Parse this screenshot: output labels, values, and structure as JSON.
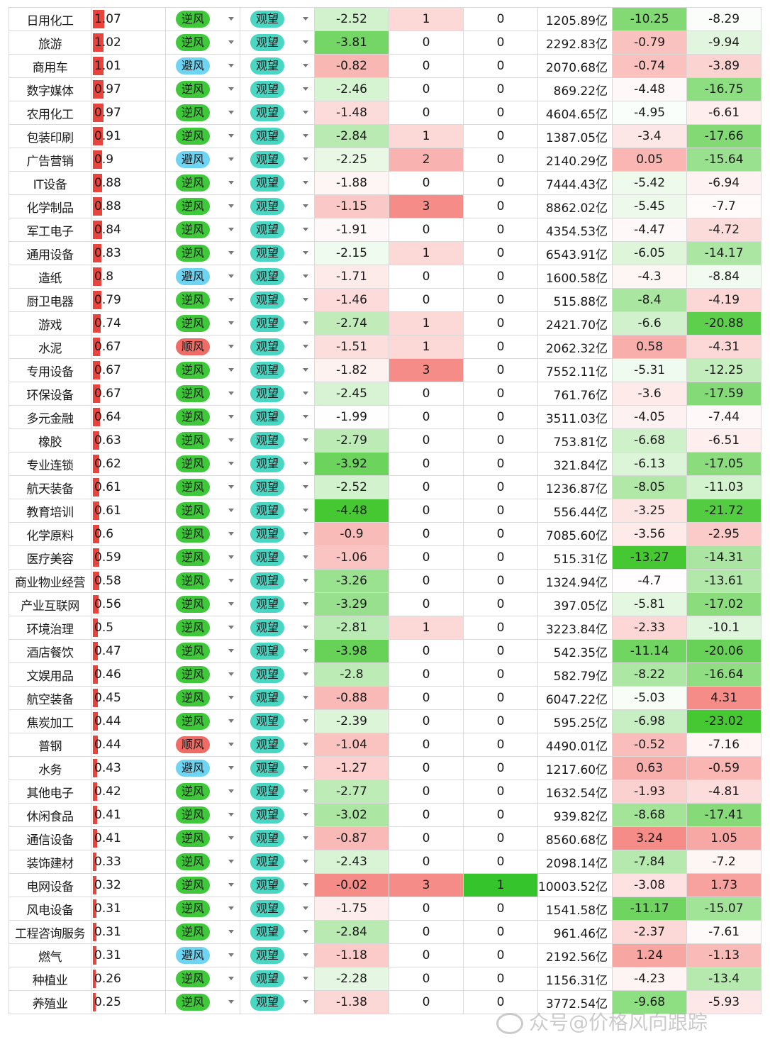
{
  "colors": {
    "bar": "#e8433d",
    "wind_ni": "#3fc93a",
    "wind_bi": "#6fd3f2",
    "wind_shun": "#ef6b66",
    "outlook": "#49d7c3"
  },
  "watermark": "众号@价格风向跟踪",
  "rows": [
    {
      "name": "日用化工",
      "score": "1.07",
      "wind": "逆风",
      "outlook": "观望",
      "chg": "-2.52",
      "c5": "1",
      "c6": "0",
      "cap": "1205.89亿",
      "r1": "-10.25",
      "r2": "-8.29"
    },
    {
      "name": "旅游",
      "score": "1.02",
      "wind": "逆风",
      "outlook": "观望",
      "chg": "-3.81",
      "c5": "0",
      "c6": "0",
      "cap": "2292.83亿",
      "r1": "-0.79",
      "r2": "-9.94"
    },
    {
      "name": "商用车",
      "score": "1.01",
      "wind": "避风",
      "outlook": "观望",
      "chg": "-0.82",
      "c5": "0",
      "c6": "0",
      "cap": "2070.68亿",
      "r1": "-0.74",
      "r2": "-3.89"
    },
    {
      "name": "数字媒体",
      "score": "0.97",
      "wind": "逆风",
      "outlook": "观望",
      "chg": "-2.46",
      "c5": "0",
      "c6": "0",
      "cap": "869.22亿",
      "r1": "-4.48",
      "r2": "-16.75"
    },
    {
      "name": "农用化工",
      "score": "0.97",
      "wind": "逆风",
      "outlook": "观望",
      "chg": "-1.48",
      "c5": "0",
      "c6": "0",
      "cap": "4604.65亿",
      "r1": "-4.95",
      "r2": "-6.61"
    },
    {
      "name": "包装印刷",
      "score": "0.91",
      "wind": "逆风",
      "outlook": "观望",
      "chg": "-2.84",
      "c5": "1",
      "c6": "0",
      "cap": "1387.05亿",
      "r1": "-3.4",
      "r2": "-17.66"
    },
    {
      "name": "广告营销",
      "score": "0.9",
      "wind": "避风",
      "outlook": "观望",
      "chg": "-2.25",
      "c5": "2",
      "c6": "0",
      "cap": "2140.29亿",
      "r1": "0.05",
      "r2": "-15.64"
    },
    {
      "name": "IT设备",
      "score": "0.88",
      "wind": "逆风",
      "outlook": "观望",
      "chg": "-1.88",
      "c5": "0",
      "c6": "0",
      "cap": "7444.43亿",
      "r1": "-5.42",
      "r2": "-6.94"
    },
    {
      "name": "化学制品",
      "score": "0.88",
      "wind": "逆风",
      "outlook": "观望",
      "chg": "-1.15",
      "c5": "3",
      "c6": "0",
      "cap": "8862.02亿",
      "r1": "-5.45",
      "r2": "-7.7"
    },
    {
      "name": "军工电子",
      "score": "0.84",
      "wind": "逆风",
      "outlook": "观望",
      "chg": "-1.91",
      "c5": "0",
      "c6": "0",
      "cap": "4354.53亿",
      "r1": "-4.47",
      "r2": "-4.72"
    },
    {
      "name": "通用设备",
      "score": "0.83",
      "wind": "逆风",
      "outlook": "观望",
      "chg": "-2.15",
      "c5": "1",
      "c6": "0",
      "cap": "6543.91亿",
      "r1": "-6.05",
      "r2": "-14.17"
    },
    {
      "name": "造纸",
      "score": "0.8",
      "wind": "避风",
      "outlook": "观望",
      "chg": "-1.71",
      "c5": "0",
      "c6": "0",
      "cap": "1600.58亿",
      "r1": "-4.3",
      "r2": "-8.84"
    },
    {
      "name": "厨卫电器",
      "score": "0.79",
      "wind": "逆风",
      "outlook": "观望",
      "chg": "-1.46",
      "c5": "0",
      "c6": "0",
      "cap": "515.88亿",
      "r1": "-8.4",
      "r2": "-4.19"
    },
    {
      "name": "游戏",
      "score": "0.74",
      "wind": "逆风",
      "outlook": "观望",
      "chg": "-2.74",
      "c5": "1",
      "c6": "0",
      "cap": "2421.70亿",
      "r1": "-6.6",
      "r2": "-20.88"
    },
    {
      "name": "水泥",
      "score": "0.67",
      "wind": "顺风",
      "outlook": "观望",
      "chg": "-1.51",
      "c5": "1",
      "c6": "0",
      "cap": "2062.32亿",
      "r1": "0.58",
      "r2": "-4.31"
    },
    {
      "name": "专用设备",
      "score": "0.67",
      "wind": "逆风",
      "outlook": "观望",
      "chg": "-1.82",
      "c5": "3",
      "c6": "0",
      "cap": "7552.11亿",
      "r1": "-5.31",
      "r2": "-12.25"
    },
    {
      "name": "环保设备",
      "score": "0.67",
      "wind": "逆风",
      "outlook": "观望",
      "chg": "-2.45",
      "c5": "0",
      "c6": "0",
      "cap": "761.76亿",
      "r1": "-3.6",
      "r2": "-17.59"
    },
    {
      "name": "多元金融",
      "score": "0.64",
      "wind": "逆风",
      "outlook": "观望",
      "chg": "-1.99",
      "c5": "0",
      "c6": "0",
      "cap": "3511.03亿",
      "r1": "-4.05",
      "r2": "-7.44"
    },
    {
      "name": "橡胶",
      "score": "0.63",
      "wind": "逆风",
      "outlook": "观望",
      "chg": "-2.79",
      "c5": "0",
      "c6": "0",
      "cap": "753.81亿",
      "r1": "-6.68",
      "r2": "-6.51"
    },
    {
      "name": "专业连锁",
      "score": "0.62",
      "wind": "逆风",
      "outlook": "观望",
      "chg": "-3.92",
      "c5": "0",
      "c6": "0",
      "cap": "321.84亿",
      "r1": "-6.13",
      "r2": "-17.05"
    },
    {
      "name": "航天装备",
      "score": "0.61",
      "wind": "逆风",
      "outlook": "观望",
      "chg": "-2.52",
      "c5": "0",
      "c6": "0",
      "cap": "1236.87亿",
      "r1": "-8.05",
      "r2": "-11.03"
    },
    {
      "name": "教育培训",
      "score": "0.61",
      "wind": "逆风",
      "outlook": "观望",
      "chg": "-4.48",
      "c5": "0",
      "c6": "0",
      "cap": "556.44亿",
      "r1": "-3.25",
      "r2": "-21.72"
    },
    {
      "name": "化学原料",
      "score": "0.6",
      "wind": "逆风",
      "outlook": "观望",
      "chg": "-0.9",
      "c5": "0",
      "c6": "0",
      "cap": "7085.60亿",
      "r1": "-3.56",
      "r2": "-2.95"
    },
    {
      "name": "医疗美容",
      "score": "0.59",
      "wind": "逆风",
      "outlook": "观望",
      "chg": "-1.06",
      "c5": "0",
      "c6": "0",
      "cap": "515.31亿",
      "r1": "-13.27",
      "r2": "-14.31"
    },
    {
      "name": "商业物业经营",
      "score": "0.58",
      "wind": "逆风",
      "outlook": "观望",
      "chg": "-3.26",
      "c5": "0",
      "c6": "0",
      "cap": "1324.94亿",
      "r1": "-4.7",
      "r2": "-13.61"
    },
    {
      "name": "产业互联网",
      "score": "0.56",
      "wind": "逆风",
      "outlook": "观望",
      "chg": "-3.29",
      "c5": "0",
      "c6": "0",
      "cap": "397.05亿",
      "r1": "-5.81",
      "r2": "-17.02"
    },
    {
      "name": "环境治理",
      "score": "0.5",
      "wind": "逆风",
      "outlook": "观望",
      "chg": "-2.81",
      "c5": "1",
      "c6": "0",
      "cap": "3223.84亿",
      "r1": "-2.33",
      "r2": "-10.1"
    },
    {
      "name": "酒店餐饮",
      "score": "0.47",
      "wind": "逆风",
      "outlook": "观望",
      "chg": "-3.98",
      "c5": "0",
      "c6": "0",
      "cap": "542.35亿",
      "r1": "-11.14",
      "r2": "-20.06"
    },
    {
      "name": "文娱用品",
      "score": "0.46",
      "wind": "逆风",
      "outlook": "观望",
      "chg": "-2.8",
      "c5": "0",
      "c6": "0",
      "cap": "582.79亿",
      "r1": "-8.22",
      "r2": "-16.64"
    },
    {
      "name": "航空装备",
      "score": "0.45",
      "wind": "逆风",
      "outlook": "观望",
      "chg": "-0.88",
      "c5": "0",
      "c6": "0",
      "cap": "6047.22亿",
      "r1": "-5.03",
      "r2": "4.31"
    },
    {
      "name": "焦炭加工",
      "score": "0.44",
      "wind": "逆风",
      "outlook": "观望",
      "chg": "-2.39",
      "c5": "0",
      "c6": "0",
      "cap": "595.25亿",
      "r1": "-6.98",
      "r2": "-23.02"
    },
    {
      "name": "普钢",
      "score": "0.44",
      "wind": "顺风",
      "outlook": "观望",
      "chg": "-1.04",
      "c5": "0",
      "c6": "0",
      "cap": "4490.01亿",
      "r1": "-0.52",
      "r2": "-7.16"
    },
    {
      "name": "水务",
      "score": "0.43",
      "wind": "避风",
      "outlook": "观望",
      "chg": "-1.27",
      "c5": "0",
      "c6": "0",
      "cap": "1217.60亿",
      "r1": "0.63",
      "r2": "-0.59"
    },
    {
      "name": "其他电子",
      "score": "0.42",
      "wind": "逆风",
      "outlook": "观望",
      "chg": "-2.77",
      "c5": "0",
      "c6": "0",
      "cap": "1632.54亿",
      "r1": "-1.93",
      "r2": "-4.81"
    },
    {
      "name": "休闲食品",
      "score": "0.41",
      "wind": "逆风",
      "outlook": "观望",
      "chg": "-3.02",
      "c5": "0",
      "c6": "0",
      "cap": "939.82亿",
      "r1": "-8.68",
      "r2": "-17.41"
    },
    {
      "name": "通信设备",
      "score": "0.41",
      "wind": "逆风",
      "outlook": "观望",
      "chg": "-0.87",
      "c5": "0",
      "c6": "0",
      "cap": "8560.68亿",
      "r1": "3.24",
      "r2": "1.05"
    },
    {
      "name": "装饰建材",
      "score": "0.33",
      "wind": "逆风",
      "outlook": "观望",
      "chg": "-2.43",
      "c5": "0",
      "c6": "0",
      "cap": "2098.14亿",
      "r1": "-7.84",
      "r2": "-7.2"
    },
    {
      "name": "电网设备",
      "score": "0.32",
      "wind": "逆风",
      "outlook": "观望",
      "chg": "-0.02",
      "c5": "3",
      "c6": "1",
      "cap": "10003.52亿",
      "r1": "-3.08",
      "r2": "1.73"
    },
    {
      "name": "风电设备",
      "score": "0.31",
      "wind": "逆风",
      "outlook": "观望",
      "chg": "-1.75",
      "c5": "0",
      "c6": "0",
      "cap": "1541.58亿",
      "r1": "-11.17",
      "r2": "-15.07"
    },
    {
      "name": "工程咨询服务",
      "score": "0.31",
      "wind": "逆风",
      "outlook": "观望",
      "chg": "-2.84",
      "c5": "0",
      "c6": "0",
      "cap": "961.46亿",
      "r1": "-2.37",
      "r2": "-7.61"
    },
    {
      "name": "燃气",
      "score": "0.31",
      "wind": "避风",
      "outlook": "观望",
      "chg": "-1.18",
      "c5": "0",
      "c6": "0",
      "cap": "2192.56亿",
      "r1": "1.24",
      "r2": "-1.13"
    },
    {
      "name": "种植业",
      "score": "0.26",
      "wind": "逆风",
      "outlook": "观望",
      "chg": "-2.28",
      "c5": "0",
      "c6": "0",
      "cap": "1156.31亿",
      "r1": "-4.23",
      "r2": "-13.4"
    },
    {
      "name": "养殖业",
      "score": "0.25",
      "wind": "逆风",
      "outlook": "观望",
      "chg": "-1.38",
      "c5": "0",
      "c6": "0",
      "cap": "3772.54亿",
      "r1": "-9.68",
      "r2": "-5.93"
    }
  ]
}
